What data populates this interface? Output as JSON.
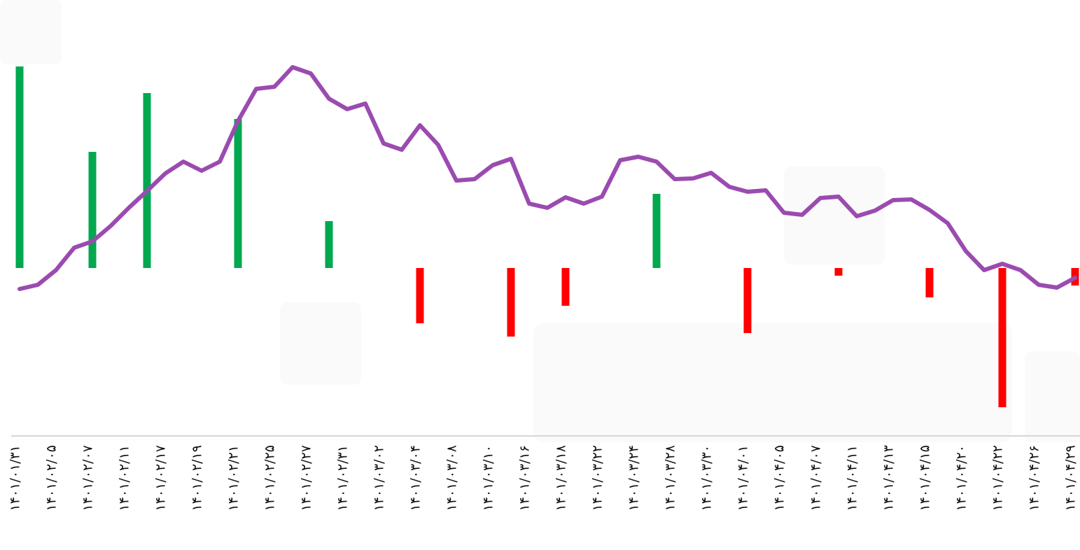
{
  "chart_data": {
    "type": "combo",
    "categories": [
      "۱۴۰۱/۰۱/۳۱",
      null,
      "۱۴۰۱/۰۲/۰۵",
      null,
      "۱۴۰۱/۰۲/۰۷",
      null,
      "۱۴۰۱/۰۲/۱۱",
      null,
      "۱۴۰۱/۰۲/۱۷",
      null,
      "۱۴۰۱/۰۲/۱۹",
      null,
      "۱۴۰۱/۰۲/۲۱",
      null,
      "۱۴۰۱/۰۲/۲۵",
      null,
      "۱۴۰۱/۰۲/۲۷",
      null,
      "۱۴۰۱/۰۲/۳۱",
      null,
      "۱۴۰۱/۰۳/۰۲",
      null,
      "۱۴۰۱/۰۳/۰۴",
      null,
      "۱۴۰۱/۰۳/۰۸",
      null,
      "۱۴۰۱/۰۳/۱۰",
      null,
      "۱۴۰۱/۰۳/۱۶",
      null,
      "۱۴۰۱/۰۳/۱۸",
      null,
      "۱۴۰۱/۰۳/۲۲",
      null,
      "۱۴۰۱/۰۳/۲۴",
      null,
      "۱۴۰۱/۰۳/۲۸",
      null,
      "۱۴۰۱/۰۳/۳۰",
      null,
      "۱۴۰۱/۰۴/۰۱",
      null,
      "۱۴۰۱/۰۴/۰۵",
      null,
      "۱۴۰۱/۰۴/۰۷",
      null,
      "۱۴۰۱/۰۴/۱۱",
      null,
      "۱۴۰۱/۰۴/۱۳",
      null,
      "۱۴۰۱/۰۴/۱۵",
      null,
      "۱۴۰۱/۰۴/۲۰",
      null,
      "۱۴۰۱/۰۴/۲۲",
      null,
      "۱۴۰۱/۰۴/۲۶",
      null,
      "۱۴۰۱/۰۴/۲۹"
    ],
    "series": [
      {
        "type": "bar",
        "positive_color": "#00a84f",
        "negative_color": "#ff0000",
        "values": [
          288,
          null,
          null,
          null,
          166,
          null,
          null,
          250,
          null,
          null,
          null,
          null,
          213,
          null,
          null,
          null,
          null,
          67,
          null,
          null,
          null,
          null,
          -79,
          null,
          null,
          null,
          null,
          -98,
          null,
          null,
          -54,
          null,
          null,
          null,
          null,
          106,
          null,
          null,
          null,
          null,
          -93,
          null,
          null,
          null,
          null,
          -11,
          null,
          null,
          null,
          null,
          -42,
          null,
          null,
          null,
          -199,
          null,
          null,
          null,
          -25
        ]
      },
      {
        "type": "line",
        "color": "#9b4bb0",
        "values": [
          -30,
          -24,
          -3,
          29,
          38,
          60,
          86,
          110,
          135,
          152,
          139,
          152,
          210,
          256,
          259,
          287,
          278,
          242,
          227,
          235,
          178,
          169,
          204,
          176,
          125,
          127,
          147,
          156,
          92,
          86,
          101,
          92,
          102,
          154,
          159,
          152,
          127,
          128,
          136,
          116,
          109,
          111,
          79,
          76,
          100,
          102,
          74,
          82,
          97,
          98,
          83,
          64,
          24,
          -3,
          6,
          -3,
          -24,
          -28,
          -14
        ]
      }
    ],
    "ylim": [
      -240,
      300
    ]
  }
}
